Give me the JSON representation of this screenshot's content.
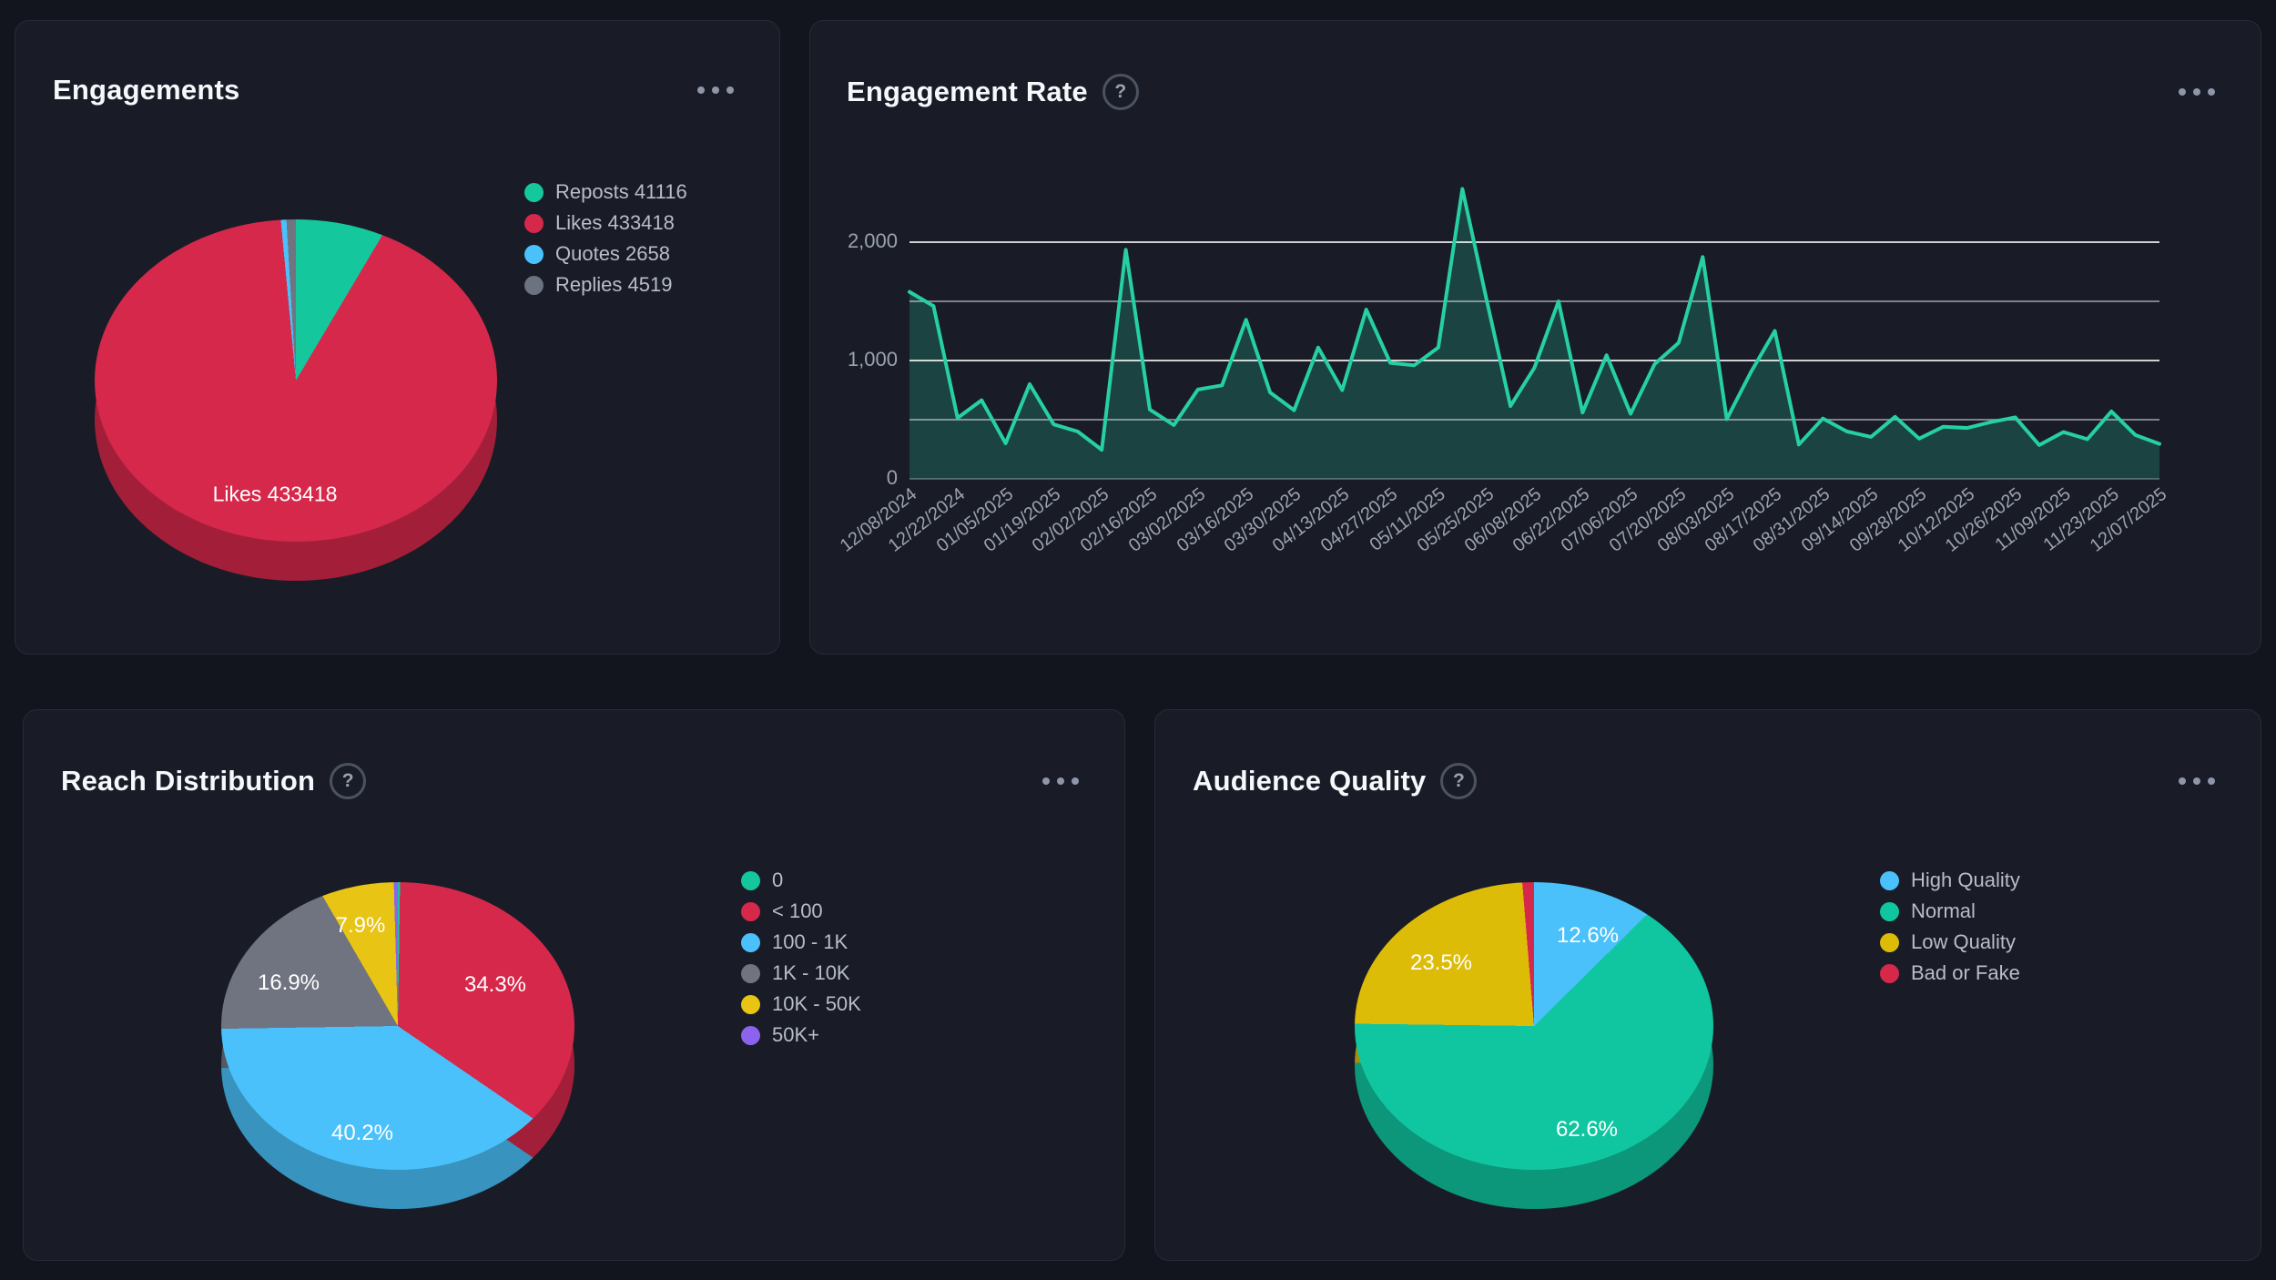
{
  "theme": {
    "page_bg": "#12151e",
    "card_bg": "#191c26",
    "card_border": "#272b37",
    "title_color": "#f6f8fb",
    "legend_text": "#b7bdc9",
    "axis_text": "#9aa2b1",
    "line_color": "#26d0a3",
    "area_fill": "rgba(38,208,163,0.22)",
    "icons": {
      "help": "?",
      "menu": "ellipsis-icon"
    }
  },
  "cards": {
    "engagements": {
      "title": "Engagements",
      "pie_label": "Likes 433418",
      "legend": [
        {
          "label": "Reposts 41116",
          "color": "#14c79d"
        },
        {
          "label": "Likes 433418",
          "color": "#d6284b"
        },
        {
          "label": "Quotes 2658",
          "color": "#4ac1fb"
        },
        {
          "label": "Replies 4519",
          "color": "#6b7280"
        }
      ]
    },
    "rate": {
      "title": "Engagement Rate",
      "y_ticks": [
        {
          "label": "2,000",
          "value": 2000
        },
        {
          "label": "1,000",
          "value": 1000
        },
        {
          "label": "0",
          "value": 0
        }
      ],
      "grid": [
        {
          "value": 2000,
          "alpha": 0.8
        },
        {
          "value": 1500,
          "alpha": 0.45
        },
        {
          "value": 1000,
          "alpha": 0.8
        },
        {
          "value": 500,
          "alpha": 0.45
        },
        {
          "value": 0,
          "alpha": 0.25
        }
      ]
    },
    "reach": {
      "title": "Reach Distribution",
      "pct_labels": [
        "7.9%",
        "16.9%",
        "34.3%",
        "40.2%"
      ],
      "legend": [
        {
          "label": "0",
          "color": "#14c79d"
        },
        {
          "label": "< 100",
          "color": "#d6284b"
        },
        {
          "label": "100 - 1K",
          "color": "#4ac1fb"
        },
        {
          "label": "1K - 10K",
          "color": "#6f7480"
        },
        {
          "label": "10K - 50K",
          "color": "#e8c414"
        },
        {
          "label": "50K+",
          "color": "#8b63ef"
        }
      ]
    },
    "audience": {
      "title": "Audience Quality",
      "pct_labels": [
        "12.6%",
        "23.5%",
        "62.6%"
      ],
      "legend": [
        {
          "label": "High Quality",
          "color": "#4ac1fb"
        },
        {
          "label": "Normal",
          "color": "#10c6a0"
        },
        {
          "label": "Low Quality",
          "color": "#ddbc08"
        },
        {
          "label": "Bad or Fake",
          "color": "#d6284b"
        }
      ]
    }
  },
  "chart_data": [
    {
      "type": "pie",
      "title": "Engagements",
      "legend_position": "right",
      "annotation": "Likes 433418",
      "slices": [
        {
          "label": "Reposts",
          "value": 41116,
          "pct": 8.54,
          "color": "#14c79d"
        },
        {
          "label": "Likes",
          "value": 433418,
          "pct": 89.97,
          "color": "#d6284b"
        },
        {
          "label": "Quotes",
          "value": 2658,
          "pct": 0.55,
          "color": "#4ac1fb"
        },
        {
          "label": "Replies",
          "value": 4519,
          "pct": 0.94,
          "color": "#6f7480"
        }
      ]
    },
    {
      "type": "area",
      "title": "Engagement Rate",
      "ylim": [
        0,
        2500
      ],
      "ytick_values": [
        0,
        1000,
        2000
      ],
      "grid_values": [
        0,
        500,
        1000,
        1500,
        2000
      ],
      "label_every": 2,
      "x": [
        "12/08/2024",
        "12/22/2024",
        "01/05/2025",
        "01/19/2025",
        "02/02/2025",
        "02/16/2025",
        "03/02/2025",
        "03/16/2025",
        "03/30/2025",
        "04/13/2025",
        "04/27/2025",
        "05/11/2025",
        "05/25/2025",
        "06/08/2025",
        "06/22/2025",
        "07/06/2025",
        "07/20/2025",
        "08/03/2025",
        "08/17/2025",
        "08/31/2025",
        "09/14/2025",
        "09/28/2025",
        "10/12/2025",
        "10/26/2025",
        "11/09/2025",
        "11/23/2025",
        "12/07/2025"
      ],
      "values": [
        1580,
        1460,
        515,
        665,
        300,
        800,
        460,
        400,
        245,
        1935,
        585,
        455,
        755,
        790,
        1345,
        730,
        580,
        1110,
        750,
        1430,
        980,
        960,
        1110,
        2450,
        1520,
        615,
        940,
        1500,
        560,
        1045,
        550,
        970,
        1150,
        1875,
        505,
        900,
        1250,
        290,
        510,
        400,
        355,
        525,
        340,
        440,
        430,
        480,
        520,
        285,
        395,
        335,
        570,
        370,
        295
      ]
    },
    {
      "type": "pie",
      "title": "Reach Distribution",
      "legend_position": "right",
      "slices": [
        {
          "label": "0",
          "pct": 0.25,
          "color": "#14c79d"
        },
        {
          "label": "< 100",
          "pct": 34.3,
          "color": "#d6284b"
        },
        {
          "label": "100 - 1K",
          "pct": 40.2,
          "color": "#4ac1fb"
        },
        {
          "label": "1K - 10K",
          "pct": 16.9,
          "color": "#6f7480"
        },
        {
          "label": "10K - 50K",
          "pct": 7.9,
          "color": "#e8c414"
        },
        {
          "label": "50K+",
          "pct": 0.45,
          "color": "#8b63ef"
        }
      ]
    },
    {
      "type": "pie",
      "title": "Audience Quality",
      "legend_position": "right",
      "slices": [
        {
          "label": "High Quality",
          "pct": 12.6,
          "color": "#4ac1fb"
        },
        {
          "label": "Normal",
          "pct": 62.6,
          "color": "#10c6a0"
        },
        {
          "label": "Low Quality",
          "pct": 23.5,
          "color": "#ddbc08"
        },
        {
          "label": "Bad or Fake",
          "pct": 1.3,
          "color": "#d6284b"
        }
      ]
    }
  ]
}
